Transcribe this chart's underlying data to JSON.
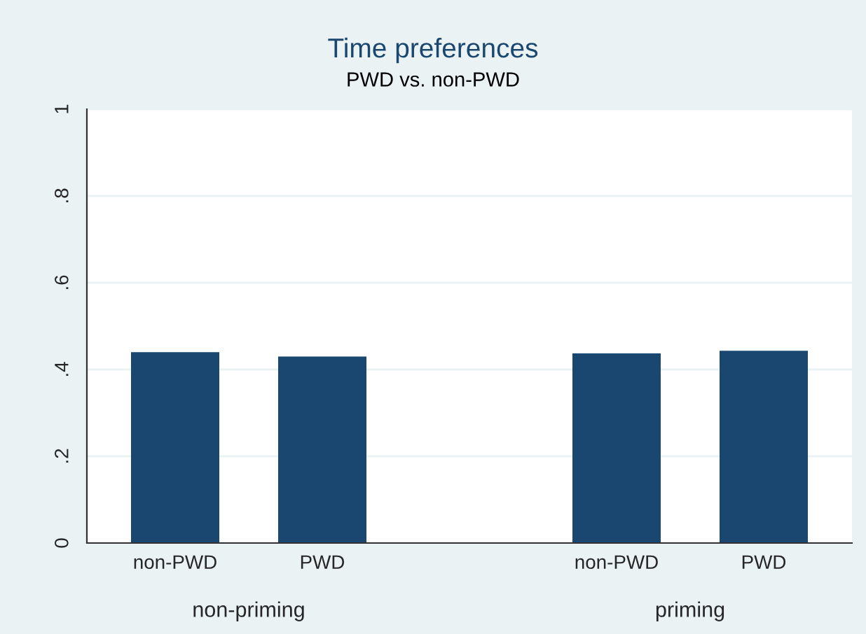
{
  "chart_data": {
    "type": "bar",
    "title": "Time preferences",
    "subtitle": "PWD vs. non-PWD",
    "categories": [
      "non-PWD",
      "PWD",
      null,
      "non-PWD",
      "PWD"
    ],
    "values": [
      0.44,
      0.43,
      null,
      0.437,
      0.443
    ],
    "color": "#1a476f",
    "ylim": [
      0,
      1
    ],
    "yticks": [
      {
        "value": 0,
        "label": "0"
      },
      {
        "value": 0.2,
        "label": ".2"
      },
      {
        "value": 0.4,
        "label": ".4"
      },
      {
        "value": 0.6,
        "label": ".6"
      },
      {
        "value": 0.8,
        "label": ".8"
      },
      {
        "value": 1,
        "label": "1"
      }
    ],
    "grid": "y",
    "annotations": [
      "non-priming",
      "priming"
    ]
  }
}
